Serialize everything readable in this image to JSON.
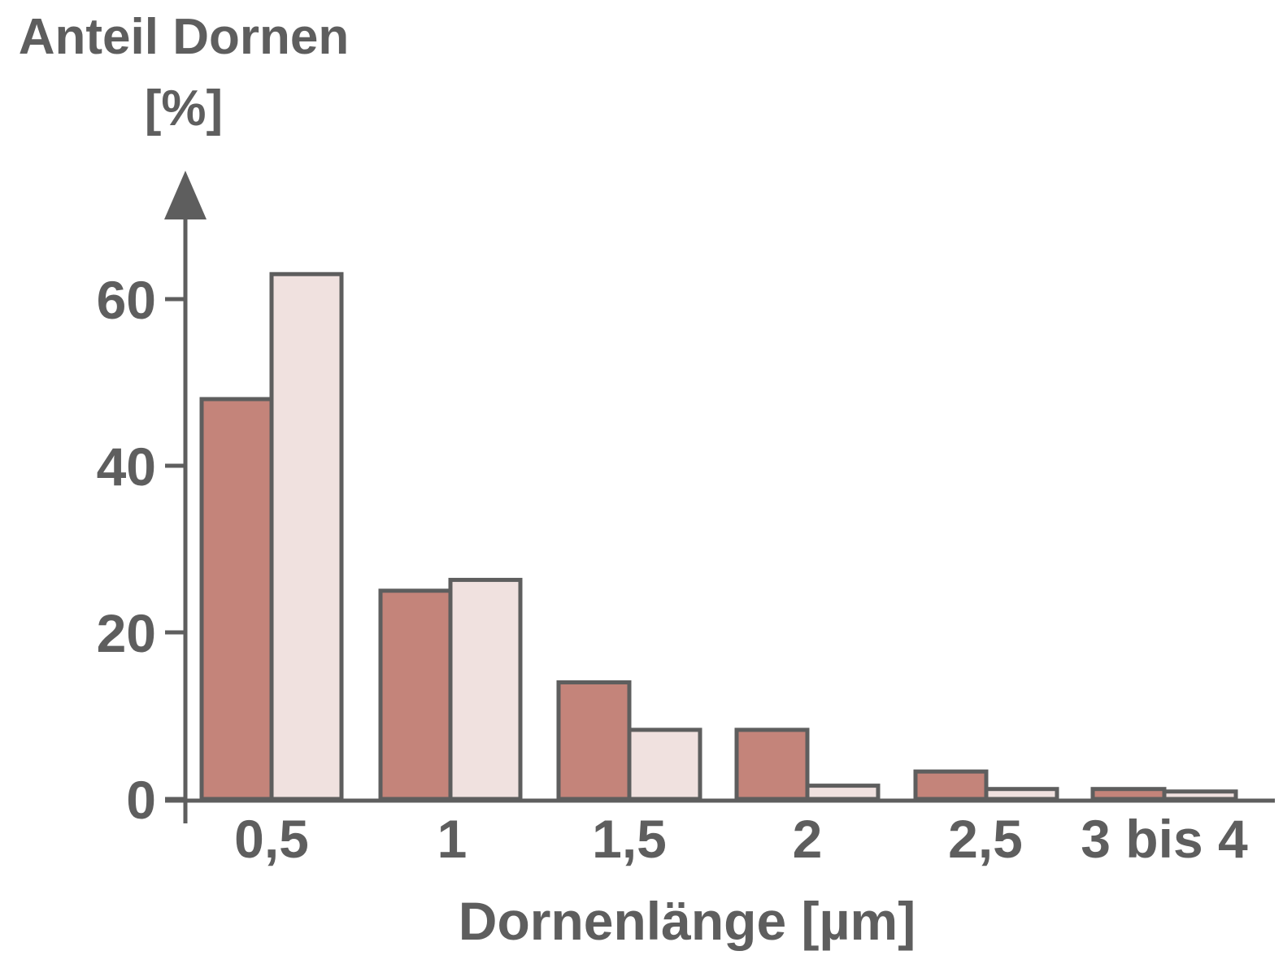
{
  "chart_data": {
    "type": "bar",
    "title": "",
    "ylabel_line1": "Anteil Dornen",
    "ylabel_line2": "[%]",
    "xlabel": "Dornenlänge [µm]",
    "categories": [
      "0,5",
      "1",
      "1,5",
      "2",
      "2,5",
      "3 bis 4"
    ],
    "y_ticks": [
      "0",
      "20",
      "40",
      "60"
    ],
    "ylim": [
      0,
      72
    ],
    "grid": false,
    "legend": "none",
    "series": [
      {
        "values": [
          48,
          25,
          14,
          8.3,
          3.3,
          1.2
        ],
        "color": "#c4847a"
      },
      {
        "values": [
          63,
          26.3,
          8.3,
          1.6,
          1.2,
          0.9
        ],
        "color": "#f0e1df"
      }
    ],
    "colors": {
      "axis": "#5e5e5e",
      "bar_stroke": "#5e5e5e"
    }
  }
}
